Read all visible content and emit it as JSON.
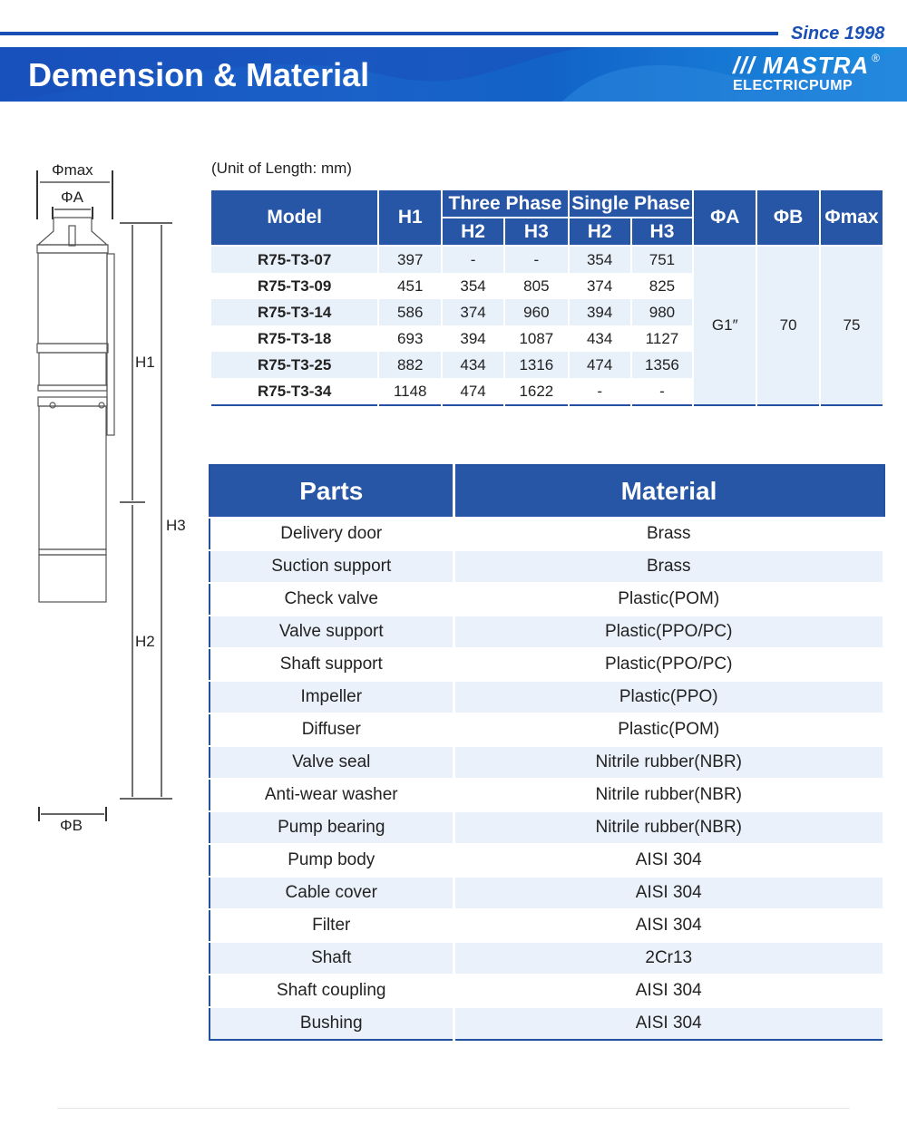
{
  "header": {
    "since": "Since 1998",
    "title": "Demension & Material",
    "logo_mark": "MASTRA",
    "logo_sub": "ELECTRICPUMP",
    "logo_reg": "®"
  },
  "diagram": {
    "labels": {
      "phimax": "Φmax",
      "phia": "ΦA",
      "phib": "ΦB",
      "h1": "H1",
      "h2": "H2",
      "h3": "H3"
    }
  },
  "dimensions": {
    "unit": "(Unit of Length: mm)",
    "headers": {
      "model": "Model",
      "h1": "H1",
      "three_phase": "Three Phase",
      "single_phase": "Single Phase",
      "h2": "H2",
      "h3": "H3",
      "phia": "ΦA",
      "phib": "ΦB",
      "phimax": "Φmax"
    },
    "rows": [
      [
        "R75-T3-07",
        "397",
        "-",
        "-",
        "354",
        "751"
      ],
      [
        "R75-T3-09",
        "451",
        "354",
        "805",
        "374",
        "825"
      ],
      [
        "R75-T3-14",
        "586",
        "374",
        "960",
        "394",
        "980"
      ],
      [
        "R75-T3-18",
        "693",
        "394",
        "1087",
        "434",
        "1127"
      ],
      [
        "R75-T3-25",
        "882",
        "434",
        "1316",
        "474",
        "1356"
      ],
      [
        "R75-T3-34",
        "1148",
        "474",
        "1622",
        "-",
        "-"
      ]
    ],
    "phia": "G1″",
    "phib": "70",
    "phimax": "75"
  },
  "materials": {
    "headers": {
      "parts": "Parts",
      "material": "Material"
    },
    "rows": [
      [
        "Delivery door",
        "Brass"
      ],
      [
        "Suction support",
        "Brass"
      ],
      [
        "Check valve",
        "Plastic(POM)"
      ],
      [
        "Valve support",
        "Plastic(PPO/PC)"
      ],
      [
        "Shaft support",
        "Plastic(PPO/PC)"
      ],
      [
        "Impeller",
        "Plastic(PPO)"
      ],
      [
        "Diffuser",
        "Plastic(POM)"
      ],
      [
        "Valve seal",
        "Nitrile rubber(NBR)"
      ],
      [
        "Anti-wear washer",
        "Nitrile rubber(NBR)"
      ],
      [
        "Pump bearing",
        "Nitrile rubber(NBR)"
      ],
      [
        "Pump body",
        "AISI 304"
      ],
      [
        "Cable cover",
        "AISI 304"
      ],
      [
        "Filter",
        "AISI 304"
      ],
      [
        "Shaft",
        "2Cr13"
      ],
      [
        "Shaft coupling",
        "AISI 304"
      ],
      [
        "Bushing",
        "AISI 304"
      ]
    ]
  },
  "colors": {
    "brand_blue": "#2656a5",
    "row_tint": "#e8f0fa"
  }
}
